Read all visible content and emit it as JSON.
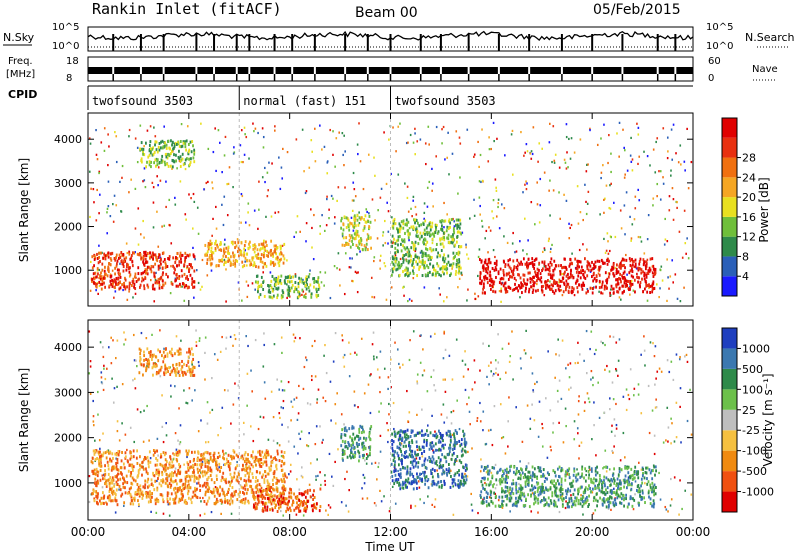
{
  "header": {
    "station": "Rankin Inlet (fitACF)",
    "beam": "Beam 00",
    "date": "05/Feb/2015"
  },
  "noise_panel": {
    "left_label": "N.Sky",
    "right_label": "N.Search",
    "left_ticks": [
      "10^5",
      "10^0"
    ],
    "right_ticks": [
      "10^5",
      "10^0"
    ]
  },
  "freq_panel": {
    "left_label_1": "Freq.",
    "left_label_2": "[MHz]",
    "right_label": "Nave",
    "left_ticks": [
      "18",
      "8"
    ],
    "right_ticks": [
      "60",
      "0"
    ]
  },
  "cpid": {
    "label": "CPID",
    "segments": [
      {
        "name": "twofsound 3503",
        "start_hour": 0,
        "end_hour": 6
      },
      {
        "name": "normal (fast) 151",
        "start_hour": 6,
        "end_hour": 12
      },
      {
        "name": "twofsound 3503",
        "start_hour": 12,
        "end_hour": 24
      }
    ]
  },
  "chart_data": [
    {
      "type": "heatmap",
      "title": "",
      "xlabel": "Time UT",
      "ylabel": "Slant Range [km]",
      "xlim": [
        0,
        24
      ],
      "ylim": [
        180,
        4600
      ],
      "x_ticks": [
        "00:00",
        "04:00",
        "08:00",
        "12:00",
        "16:00",
        "20:00",
        "00:00"
      ],
      "y_ticks": [
        1000,
        2000,
        3000,
        4000
      ],
      "colorbar": {
        "label": "Power [dB]",
        "ticks": [
          "4",
          "8",
          "12",
          "16",
          "20",
          "24",
          "28"
        ],
        "colors": [
          "#1a1aff",
          "#2a5fb8",
          "#2e8a4a",
          "#6fbf3a",
          "#e8e020",
          "#f5a623",
          "#f07010",
          "#e83010",
          "#e00000"
        ]
      },
      "regions": [
        {
          "t0": 0.1,
          "t1": 4.2,
          "r0": 600,
          "r1": 1450,
          "level": 7
        },
        {
          "t0": 4.6,
          "t1": 7.8,
          "r0": 1100,
          "r1": 1700,
          "level": 5
        },
        {
          "t0": 6.6,
          "t1": 9.2,
          "r0": 400,
          "r1": 900,
          "level": 3
        },
        {
          "t0": 10.0,
          "t1": 11.2,
          "r0": 1500,
          "r1": 2300,
          "level": 4
        },
        {
          "t0": 12.0,
          "t1": 14.8,
          "r0": 900,
          "r1": 2200,
          "level": 3
        },
        {
          "t0": 15.5,
          "t1": 22.5,
          "r0": 500,
          "r1": 1300,
          "level": 8
        },
        {
          "t0": 2.0,
          "t1": 4.2,
          "r0": 3400,
          "r1": 4000,
          "level": 3
        }
      ]
    },
    {
      "type": "heatmap",
      "title": "",
      "xlabel": "Time UT",
      "ylabel": "Slant Range [km]",
      "xlim": [
        0,
        24
      ],
      "ylim": [
        180,
        4600
      ],
      "x_ticks": [
        "00:00",
        "04:00",
        "08:00",
        "12:00",
        "16:00",
        "20:00",
        "00:00"
      ],
      "y_ticks": [
        1000,
        2000,
        3000,
        4000
      ],
      "colorbar": {
        "label": "Velocity [m s⁻¹]",
        "ticks": [
          "1000",
          "500",
          "100",
          "25",
          "-25",
          "-100",
          "-500",
          "-1000"
        ],
        "colors": [
          "#1f3fbf",
          "#3b78b0",
          "#2e8a4a",
          "#6cc04a",
          "#bebebe",
          "#f5c040",
          "#f08a10",
          "#f05010",
          "#e00000"
        ]
      },
      "regions": [
        {
          "t0": 0.1,
          "t1": 7.8,
          "r0": 550,
          "r1": 1750,
          "level": 2
        },
        {
          "t0": 6.5,
          "t1": 9.2,
          "r0": 400,
          "r1": 900,
          "level": 1
        },
        {
          "t0": 10.0,
          "t1": 11.2,
          "r0": 1500,
          "r1": 2300,
          "level": 6
        },
        {
          "t0": 12.0,
          "t1": 15.0,
          "r0": 900,
          "r1": 2200,
          "level": 7
        },
        {
          "t0": 15.5,
          "t1": 22.5,
          "r0": 500,
          "r1": 1400,
          "level": 6
        },
        {
          "t0": 2.0,
          "t1": 4.2,
          "r0": 3400,
          "r1": 4000,
          "level": 2
        }
      ]
    }
  ]
}
